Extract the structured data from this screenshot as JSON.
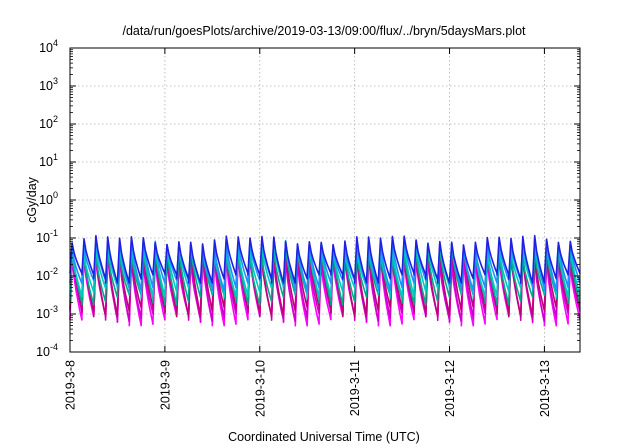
{
  "chart_data": {
    "type": "line",
    "title": "/data/run/goesPlots/archive/2019-03-13/09:00/flux/../bryn/5daysMars.plot",
    "xlabel": "Coordinated Universal Time (UTC)",
    "ylabel": "cGy/day",
    "y_scale": "log",
    "ylim": [
      0.0001,
      10000
    ],
    "xlim": [
      "2019-03-08T00:00",
      "2019-03-13T09:00"
    ],
    "grid": true,
    "legend": "none",
    "x_tick_labels": [
      "2019-3-8",
      "2019-3-9",
      "2019-3-10",
      "2019-3-11",
      "2019-3-12",
      "2019-3-13"
    ],
    "y_ticks": [
      {
        "value": 0.0001,
        "base": "10",
        "exp": "-4"
      },
      {
        "value": 0.001,
        "base": "10",
        "exp": "-3"
      },
      {
        "value": 0.01,
        "base": "10",
        "exp": "-2"
      },
      {
        "value": 0.1,
        "base": "10",
        "exp": "-1"
      },
      {
        "value": 1,
        "base": "10",
        "exp": "0"
      },
      {
        "value": 10,
        "base": "10",
        "exp": "1"
      },
      {
        "value": 100,
        "base": "10",
        "exp": "2"
      },
      {
        "value": 1000,
        "base": "10",
        "exp": "3"
      },
      {
        "value": 10000,
        "base": "10",
        "exp": "4"
      }
    ],
    "cycles_per_day": 8,
    "series": [
      {
        "color": "#ff00ff",
        "peak": 0.028,
        "trough": 0.0007
      },
      {
        "color": "#cc00cc",
        "peak": 0.035,
        "trough": 0.0009
      },
      {
        "color": "#c0007a",
        "peak": 0.05,
        "trough": 0.0012
      },
      {
        "color": "#00aa88",
        "peak": 0.045,
        "trough": 0.0025
      },
      {
        "color": "#00c8c8",
        "peak": 0.06,
        "trough": 0.004
      },
      {
        "color": "#1e90ff",
        "peak": 0.075,
        "trough": 0.006
      },
      {
        "color": "#2020e0",
        "peak": 0.09,
        "trough": 0.009
      }
    ]
  }
}
